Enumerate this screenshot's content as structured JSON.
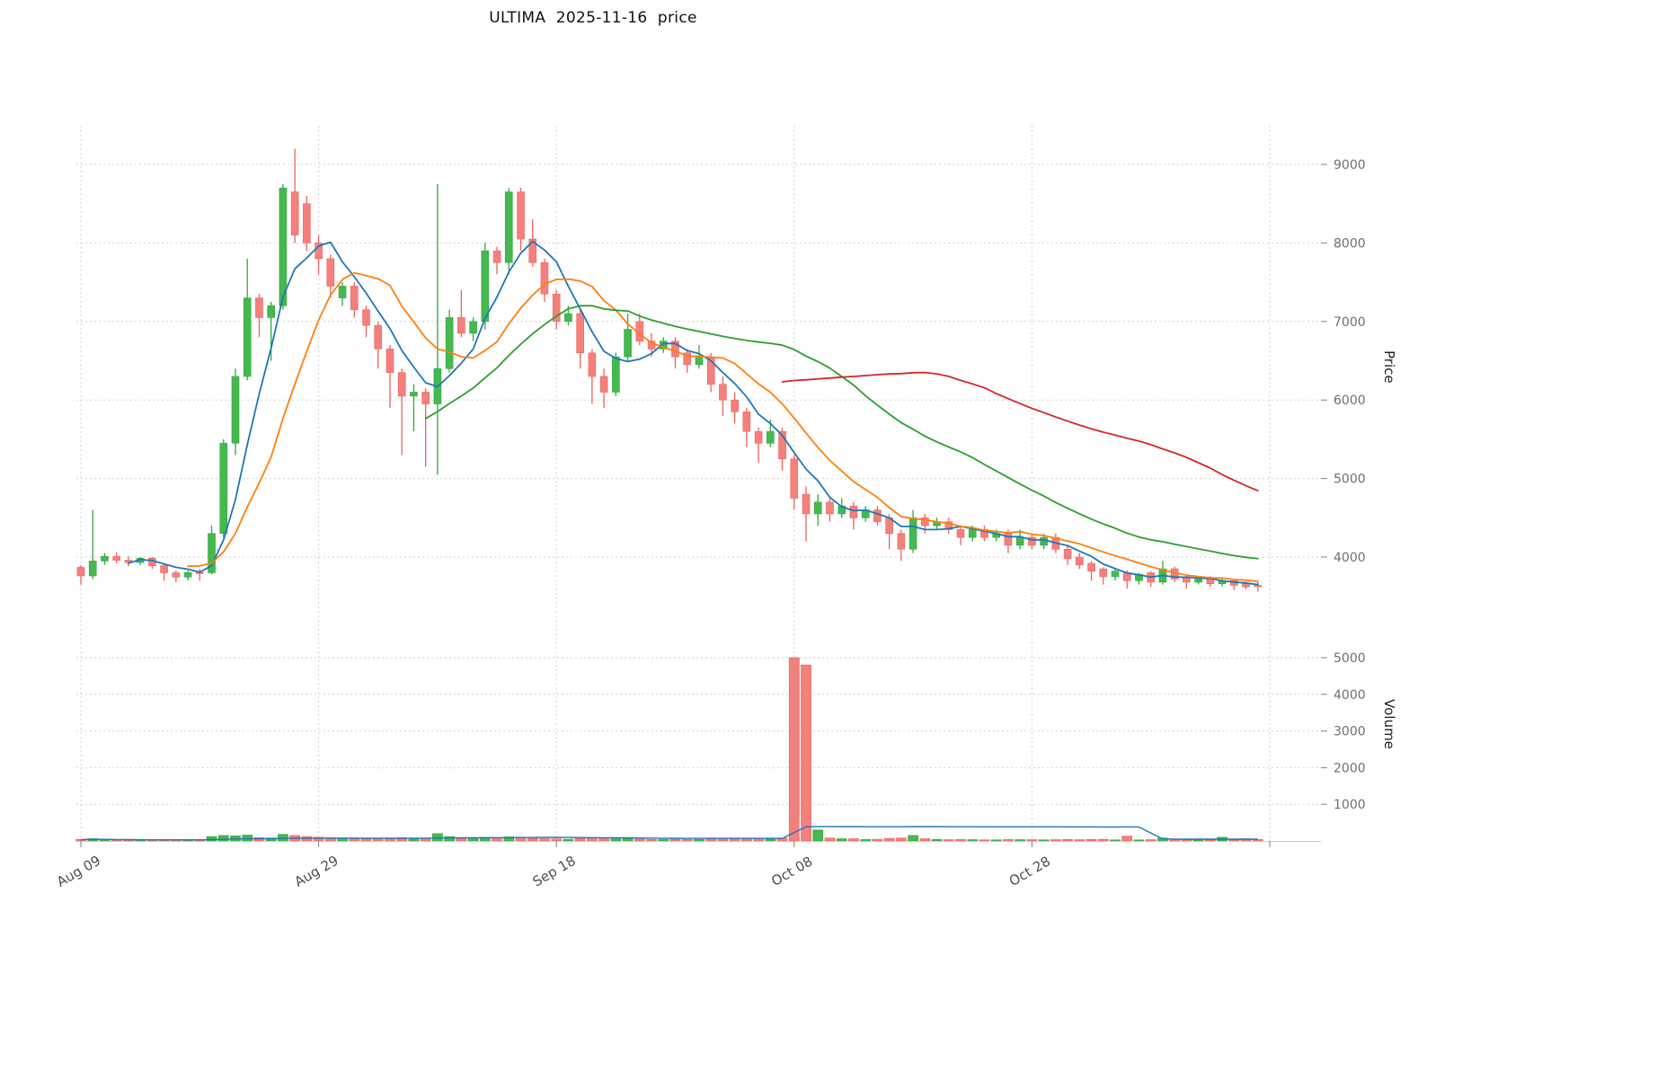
{
  "chart_data": {
    "type": "candlestick",
    "title": "ULTIMA  2025-11-16  price",
    "ylabel_price": "Price",
    "ylabel_volume": "Volume",
    "legend": "none",
    "grid": true,
    "price_ylim": [
      3000,
      9500
    ],
    "volume_ylim": [
      0,
      5200
    ],
    "price_ticks": [
      4000,
      5000,
      6000,
      7000,
      8000,
      9000
    ],
    "volume_ticks": [
      1000,
      2000,
      3000,
      4000,
      5000
    ],
    "x_ticks": [
      {
        "label": "Aug 09",
        "pos": 0
      },
      {
        "label": "Aug 29",
        "pos": 20
      },
      {
        "label": "Sep 18",
        "pos": 40
      },
      {
        "label": "Oct 08",
        "pos": 60
      },
      {
        "label": "Oct 28",
        "pos": 80
      }
    ],
    "x_grid_extra": [
      100
    ],
    "colors": {
      "up": "#45b94f",
      "up_edge": "#35a53f",
      "down": "#f4807d",
      "down_edge": "#e86360",
      "grid": "#d2d2d2",
      "tick_text": "#6e6e6e",
      "date_text": "#4d4d4d",
      "spine": "#cccccc",
      "volume_ma": "#1f77b4"
    },
    "ma_lines": [
      {
        "name": "ma5",
        "period": 5,
        "color": "#1f77b4"
      },
      {
        "name": "ma10",
        "period": 10,
        "color": "#ff7f0e"
      },
      {
        "name": "ma30",
        "period": 30,
        "color": "#2ca02c"
      },
      {
        "name": "ma60",
        "period": 60,
        "color": "#d62728"
      }
    ],
    "volume_ma_period": 30,
    "candles_format": [
      "open",
      "high",
      "low",
      "close",
      "volume"
    ],
    "candles": [
      [
        3870,
        3900,
        3650,
        3760,
        40
      ],
      [
        3760,
        4600,
        3720,
        3950,
        60
      ],
      [
        3950,
        4050,
        3900,
        4010,
        30
      ],
      [
        4010,
        4060,
        3920,
        3960,
        25
      ],
      [
        3960,
        4010,
        3880,
        3930,
        25
      ],
      [
        3930,
        4000,
        3900,
        3985,
        20
      ],
      [
        3985,
        4000,
        3850,
        3890,
        25
      ],
      [
        3890,
        3920,
        3700,
        3800,
        30
      ],
      [
        3800,
        3830,
        3680,
        3745,
        35
      ],
      [
        3745,
        3830,
        3700,
        3805,
        30
      ],
      [
        3805,
        3850,
        3700,
        3800,
        30
      ],
      [
        3800,
        4400,
        3780,
        4300,
        120
      ],
      [
        4300,
        5500,
        4250,
        5450,
        150
      ],
      [
        5450,
        6400,
        5300,
        6300,
        140
      ],
      [
        6300,
        7800,
        6250,
        7300,
        160
      ],
      [
        7300,
        7350,
        6800,
        7050,
        90
      ],
      [
        7050,
        7250,
        6500,
        7200,
        80
      ],
      [
        7200,
        8750,
        7150,
        8700,
        180
      ],
      [
        8650,
        9200,
        8000,
        8100,
        150
      ],
      [
        8500,
        8600,
        7900,
        8000,
        120
      ],
      [
        8000,
        8100,
        7600,
        7800,
        100
      ],
      [
        7800,
        7850,
        7300,
        7450,
        90
      ],
      [
        7300,
        7500,
        7200,
        7450,
        70
      ],
      [
        7450,
        7500,
        7050,
        7150,
        60
      ],
      [
        7150,
        7200,
        6800,
        6950,
        60
      ],
      [
        6950,
        7000,
        6400,
        6650,
        70
      ],
      [
        6650,
        6700,
        5900,
        6350,
        80
      ],
      [
        6350,
        6400,
        5300,
        6050,
        90
      ],
      [
        6050,
        6200,
        5600,
        6100,
        50
      ],
      [
        6100,
        6150,
        5150,
        5950,
        80
      ],
      [
        5950,
        8750,
        5050,
        6400,
        200
      ],
      [
        6400,
        7150,
        6350,
        7050,
        120
      ],
      [
        7050,
        7400,
        6800,
        6850,
        80
      ],
      [
        6850,
        7050,
        6750,
        7000,
        60
      ],
      [
        7000,
        8000,
        6900,
        7900,
        100
      ],
      [
        7900,
        7950,
        7600,
        7750,
        60
      ],
      [
        7750,
        8700,
        7600,
        8650,
        110
      ],
      [
        8650,
        8700,
        7900,
        8050,
        90
      ],
      [
        8050,
        8300,
        7700,
        7750,
        70
      ],
      [
        7750,
        7800,
        7250,
        7350,
        60
      ],
      [
        7350,
        7400,
        6900,
        7000,
        55
      ],
      [
        7000,
        7200,
        6950,
        7100,
        45
      ],
      [
        7100,
        7150,
        6400,
        6600,
        70
      ],
      [
        6600,
        6650,
        5950,
        6300,
        80
      ],
      [
        6300,
        6400,
        5900,
        6100,
        60
      ],
      [
        6100,
        6600,
        6050,
        6550,
        60
      ],
      [
        6550,
        7100,
        6500,
        6900,
        70
      ],
      [
        7000,
        7100,
        6700,
        6750,
        50
      ],
      [
        6750,
        6850,
        6550,
        6650,
        40
      ],
      [
        6650,
        6800,
        6600,
        6750,
        40
      ],
      [
        6750,
        6800,
        6400,
        6550,
        45
      ],
      [
        6600,
        6650,
        6350,
        6450,
        40
      ],
      [
        6450,
        6700,
        6400,
        6550,
        40
      ],
      [
        6550,
        6600,
        6100,
        6200,
        60
      ],
      [
        6200,
        6300,
        5800,
        6000,
        70
      ],
      [
        6000,
        6100,
        5700,
        5850,
        60
      ],
      [
        5850,
        5900,
        5400,
        5600,
        70
      ],
      [
        5600,
        5650,
        5200,
        5450,
        70
      ],
      [
        5450,
        5750,
        5400,
        5600,
        50
      ],
      [
        5600,
        5650,
        5100,
        5250,
        80
      ],
      [
        5250,
        5300,
        4600,
        4750,
        5000
      ],
      [
        4800,
        4900,
        4200,
        4550,
        4800
      ],
      [
        4550,
        4800,
        4400,
        4700,
        300
      ],
      [
        4700,
        4750,
        4450,
        4550,
        80
      ],
      [
        4550,
        4750,
        4500,
        4650,
        60
      ],
      [
        4650,
        4700,
        4350,
        4500,
        60
      ],
      [
        4500,
        4650,
        4450,
        4600,
        40
      ],
      [
        4600,
        4650,
        4400,
        4450,
        45
      ],
      [
        4500,
        4550,
        4100,
        4300,
        70
      ],
      [
        4300,
        4350,
        3950,
        4100,
        80
      ],
      [
        4100,
        4600,
        4050,
        4500,
        150
      ],
      [
        4500,
        4550,
        4300,
        4400,
        60
      ],
      [
        4400,
        4500,
        4350,
        4450,
        40
      ],
      [
        4450,
        4500,
        4300,
        4350,
        35
      ],
      [
        4350,
        4400,
        4150,
        4250,
        40
      ],
      [
        4250,
        4400,
        4200,
        4350,
        35
      ],
      [
        4350,
        4400,
        4200,
        4250,
        30
      ],
      [
        4250,
        4350,
        4200,
        4300,
        30
      ],
      [
        4300,
        4350,
        4050,
        4150,
        40
      ],
      [
        4150,
        4350,
        4100,
        4250,
        35
      ],
      [
        4250,
        4300,
        4100,
        4150,
        35
      ],
      [
        4150,
        4300,
        4100,
        4250,
        30
      ],
      [
        4250,
        4300,
        4050,
        4100,
        35
      ],
      [
        4100,
        4150,
        3900,
        3980,
        40
      ],
      [
        4000,
        4050,
        3850,
        3900,
        35
      ],
      [
        3920,
        3950,
        3700,
        3820,
        40
      ],
      [
        3850,
        3870,
        3650,
        3750,
        45
      ],
      [
        3750,
        3850,
        3700,
        3820,
        30
      ],
      [
        3800,
        3830,
        3600,
        3700,
        130
      ],
      [
        3700,
        3800,
        3650,
        3780,
        30
      ],
      [
        3800,
        3820,
        3620,
        3680,
        35
      ],
      [
        3680,
        3950,
        3650,
        3850,
        80
      ],
      [
        3850,
        3880,
        3680,
        3720,
        45
      ],
      [
        3750,
        3780,
        3600,
        3680,
        35
      ],
      [
        3680,
        3760,
        3650,
        3730,
        30
      ],
      [
        3730,
        3760,
        3620,
        3660,
        30
      ],
      [
        3660,
        3720,
        3630,
        3700,
        100
      ],
      [
        3700,
        3720,
        3580,
        3640,
        35
      ],
      [
        3660,
        3690,
        3590,
        3620,
        60
      ],
      [
        3640,
        3680,
        3560,
        3625,
        40
      ]
    ]
  }
}
